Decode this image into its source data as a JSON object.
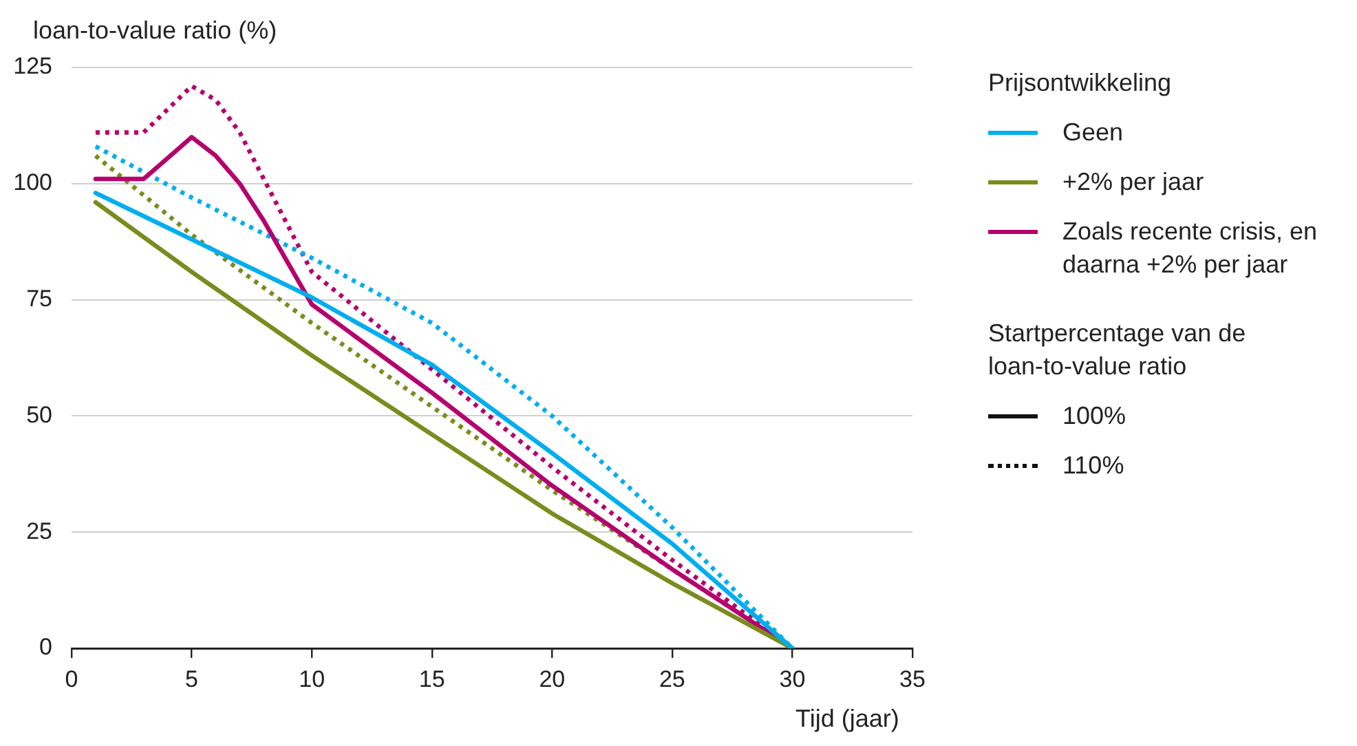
{
  "chart_data": {
    "type": "line",
    "ylabel": "loan-to-value ratio (%)",
    "xlabel": "Tijd (jaar)",
    "legend_title": "Prijsontwikkeling",
    "xlim": [
      0,
      35
    ],
    "xticks": [
      0,
      5,
      10,
      15,
      20,
      25,
      30,
      35
    ],
    "ylim": [
      0,
      125
    ],
    "yticks": [
      0,
      25,
      50,
      75,
      100,
      125
    ],
    "grid": "y",
    "legend": "right",
    "marker": "none",
    "annotations": [
      "Startpercentage van de loan-to-value ratio",
      "100%",
      "110%"
    ],
    "series": [
      {
        "name": "Geen",
        "color": "#00aeef",
        "line_style": "solid",
        "x": [
          1,
          5,
          10,
          15,
          20,
          25,
          30
        ],
        "values": [
          98,
          88,
          75.5,
          61,
          42,
          22.5,
          0
        ]
      },
      {
        "name": "+2% per jaar",
        "color": "#7a8c1e",
        "line_style": "solid",
        "x": [
          1,
          5,
          10,
          15,
          20,
          25,
          30
        ],
        "values": [
          96,
          81,
          63,
          46,
          29,
          14,
          0
        ]
      },
      {
        "name": "Zoals recente crisis, en daarna +2% per jaar",
        "color": "#b5006e",
        "line_style": "solid",
        "x": [
          1,
          3,
          5,
          6,
          7,
          8,
          10,
          15,
          20,
          25,
          30
        ],
        "values": [
          101,
          101,
          110,
          106,
          100,
          92,
          74,
          55,
          35,
          17,
          0
        ]
      },
      {
        "color": "#00aeef",
        "line_style": "dotted",
        "x": [
          1,
          5,
          10,
          15,
          20,
          25,
          30
        ],
        "values": [
          108,
          97,
          84,
          70,
          50,
          26,
          0
        ]
      },
      {
        "color": "#7a8c1e",
        "line_style": "dotted",
        "x": [
          1,
          5,
          10,
          15,
          20,
          25,
          30
        ],
        "values": [
          106,
          89,
          70,
          52,
          34,
          17,
          0
        ]
      },
      {
        "color": "#b5006e",
        "line_style": "dotted",
        "x": [
          1,
          3,
          5,
          6,
          7,
          8,
          10,
          15,
          20,
          25,
          30
        ],
        "values": [
          111,
          111,
          121,
          118,
          111,
          101,
          81,
          60,
          39,
          19,
          0
        ]
      }
    ]
  }
}
